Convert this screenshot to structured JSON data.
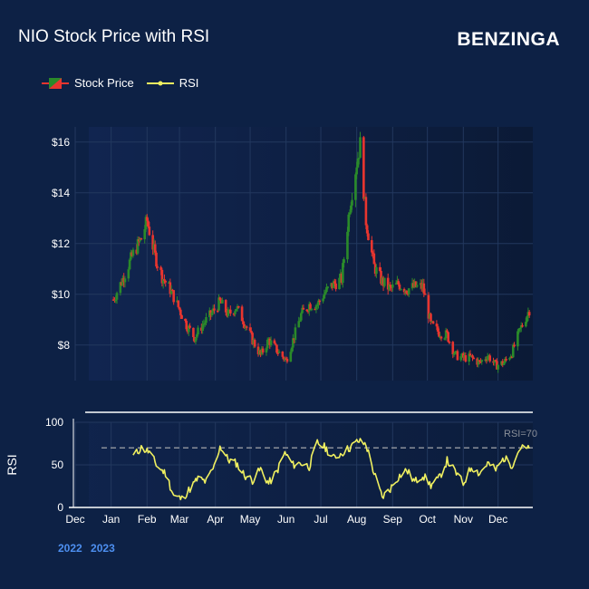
{
  "header": {
    "title": "NIO Stock Price with RSI",
    "brand": "BENZINGA"
  },
  "legend": {
    "price_label": "Stock Price",
    "rsi_label": "RSI"
  },
  "years": [
    "2022",
    "2023"
  ],
  "colors": {
    "background": "#0d2145",
    "plot_bg_start": "#112550",
    "plot_bg_end": "#0b1a36",
    "up": "#2a8a2a",
    "down": "#e8352f",
    "rsi": "#f0f060",
    "grid": "#22385e",
    "reference_line": "#8a8f99"
  },
  "chart_data": [
    {
      "type": "candlestick",
      "title": "NIO Stock Price with RSI",
      "series_name": "Stock Price",
      "ylim": [
        6.6,
        16.6
      ],
      "y_ticks": [
        8,
        10,
        12,
        14,
        16
      ],
      "y_tick_labels": [
        "$8",
        "$10",
        "$12",
        "$14",
        "$16"
      ],
      "grid": true,
      "x_start": "2022-12-01",
      "x_end": "2023-12-31",
      "x_ticks": [
        "2022-12-01",
        "2023-01-01",
        "2023-02-01",
        "2023-03-01",
        "2023-04-01",
        "2023-05-01",
        "2023-06-01",
        "2023-07-01",
        "2023-08-01",
        "2023-09-01",
        "2023-10-01",
        "2023-11-01",
        "2023-12-01"
      ],
      "x_tick_labels": [
        "Dec",
        "Jan",
        "Feb",
        "Mar",
        "Apr",
        "May",
        "Jun",
        "Jul",
        "Aug",
        "Sep",
        "Oct",
        "Nov",
        "Dec"
      ],
      "close_anchors": [
        [
          "2023-01-03",
          9.8
        ],
        [
          "2023-01-10",
          10.5
        ],
        [
          "2023-01-20",
          11.6
        ],
        [
          "2023-01-27",
          12.2
        ],
        [
          "2023-02-01",
          12.9
        ],
        [
          "2023-02-08",
          11.5
        ],
        [
          "2023-02-14",
          10.7
        ],
        [
          "2023-02-21",
          10.2
        ],
        [
          "2023-02-28",
          9.5
        ],
        [
          "2023-03-07",
          8.8
        ],
        [
          "2023-03-14",
          8.3
        ],
        [
          "2023-03-21",
          8.8
        ],
        [
          "2023-03-28",
          9.2
        ],
        [
          "2023-04-05",
          9.7
        ],
        [
          "2023-04-12",
          9.2
        ],
        [
          "2023-04-19",
          9.5
        ],
        [
          "2023-04-26",
          8.9
        ],
        [
          "2023-05-03",
          8.2
        ],
        [
          "2023-05-10",
          7.6
        ],
        [
          "2023-05-17",
          8.2
        ],
        [
          "2023-05-24",
          7.8
        ],
        [
          "2023-06-01",
          7.4
        ],
        [
          "2023-06-07",
          8.2
        ],
        [
          "2023-06-14",
          9.2
        ],
        [
          "2023-06-21",
          9.6
        ],
        [
          "2023-06-28",
          9.6
        ],
        [
          "2023-07-05",
          10.1
        ],
        [
          "2023-07-12",
          10.4
        ],
        [
          "2023-07-19",
          10.6
        ],
        [
          "2023-07-26",
          13.5
        ],
        [
          "2023-08-01",
          15.2
        ],
        [
          "2023-08-04",
          15.9
        ],
        [
          "2023-08-09",
          12.9
        ],
        [
          "2023-08-16",
          11.1
        ],
        [
          "2023-08-23",
          10.5
        ],
        [
          "2023-08-30",
          10.2
        ],
        [
          "2023-09-06",
          10.4
        ],
        [
          "2023-09-13",
          10.2
        ],
        [
          "2023-09-20",
          10.3
        ],
        [
          "2023-09-27",
          10.3
        ],
        [
          "2023-10-04",
          8.8
        ],
        [
          "2023-10-11",
          8.5
        ],
        [
          "2023-10-18",
          8.4
        ],
        [
          "2023-10-25",
          7.6
        ],
        [
          "2023-11-01",
          7.5
        ],
        [
          "2023-11-08",
          7.5
        ],
        [
          "2023-11-15",
          7.3
        ],
        [
          "2023-11-22",
          7.6
        ],
        [
          "2023-11-29",
          7.2
        ],
        [
          "2023-12-06",
          7.3
        ],
        [
          "2023-12-13",
          7.7
        ],
        [
          "2023-12-20",
          8.6
        ],
        [
          "2023-12-28",
          9.4
        ]
      ],
      "gaps": [
        [
          "2023-09-30",
          "2023-10-01"
        ]
      ]
    },
    {
      "type": "line",
      "series_name": "RSI",
      "ylabel": "RSI",
      "ylim": [
        0,
        100
      ],
      "y_ticks": [
        0,
        50,
        100
      ],
      "y_tick_labels": [
        "0",
        "50",
        "100"
      ],
      "reference_line": {
        "value": 70,
        "label": "RSI=70"
      },
      "points": [
        [
          "2023-01-20",
          60
        ],
        [
          "2023-01-27",
          70
        ],
        [
          "2023-02-03",
          65
        ],
        [
          "2023-02-10",
          48
        ],
        [
          "2023-02-17",
          40
        ],
        [
          "2023-02-24",
          14
        ],
        [
          "2023-03-03",
          10
        ],
        [
          "2023-03-10",
          22
        ],
        [
          "2023-03-17",
          34
        ],
        [
          "2023-03-24",
          30
        ],
        [
          "2023-03-31",
          48
        ],
        [
          "2023-04-05",
          72
        ],
        [
          "2023-04-12",
          56
        ],
        [
          "2023-04-19",
          52
        ],
        [
          "2023-04-26",
          38
        ],
        [
          "2023-05-03",
          32
        ],
        [
          "2023-05-10",
          45
        ],
        [
          "2023-05-17",
          28
        ],
        [
          "2023-05-24",
          42
        ],
        [
          "2023-05-31",
          64
        ],
        [
          "2023-06-07",
          50
        ],
        [
          "2023-06-14",
          52
        ],
        [
          "2023-06-21",
          48
        ],
        [
          "2023-06-28",
          76
        ],
        [
          "2023-07-05",
          70
        ],
        [
          "2023-07-12",
          58
        ],
        [
          "2023-07-19",
          64
        ],
        [
          "2023-07-26",
          70
        ],
        [
          "2023-08-02",
          78
        ],
        [
          "2023-08-09",
          74
        ],
        [
          "2023-08-16",
          40
        ],
        [
          "2023-08-23",
          12
        ],
        [
          "2023-08-30",
          22
        ],
        [
          "2023-09-06",
          36
        ],
        [
          "2023-09-13",
          44
        ],
        [
          "2023-09-20",
          30
        ],
        [
          "2023-09-27",
          38
        ],
        [
          "2023-10-04",
          26
        ],
        [
          "2023-10-11",
          34
        ],
        [
          "2023-10-18",
          55
        ],
        [
          "2023-10-25",
          42
        ],
        [
          "2023-11-01",
          28
        ],
        [
          "2023-11-08",
          48
        ],
        [
          "2023-11-15",
          40
        ],
        [
          "2023-11-22",
          52
        ],
        [
          "2023-11-29",
          44
        ],
        [
          "2023-12-06",
          58
        ],
        [
          "2023-12-13",
          50
        ],
        [
          "2023-12-20",
          70
        ],
        [
          "2023-12-28",
          68
        ]
      ],
      "x_tick_labels": [
        "Dec",
        "Jan",
        "Feb",
        "Mar",
        "Apr",
        "May",
        "Jun",
        "Jul",
        "Aug",
        "Sep",
        "Oct",
        "Nov",
        "Dec"
      ]
    }
  ]
}
